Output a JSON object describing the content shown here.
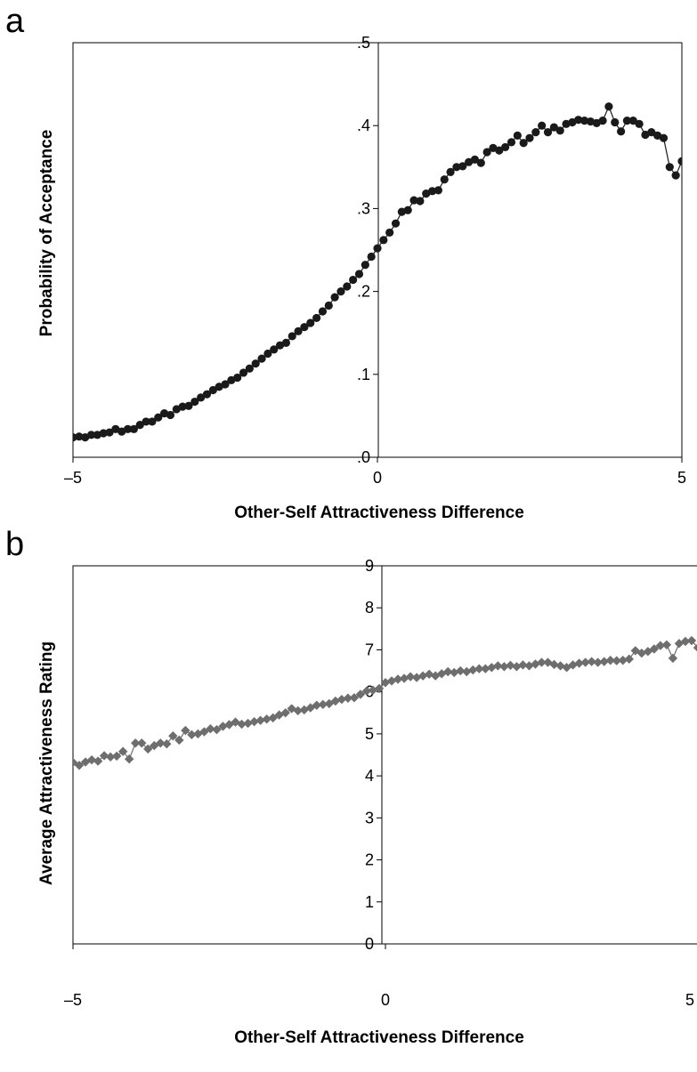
{
  "chart_data": [
    {
      "type": "line",
      "panel_label": "a",
      "xlabel": "Other-Self Attractiveness Difference",
      "ylabel": "Probability of Acceptance",
      "xlim": [
        -5,
        5
      ],
      "ylim": [
        0,
        0.5
      ],
      "x_ticks": [
        "–5",
        "0",
        "5"
      ],
      "y_ticks": [
        ".0",
        ".1",
        ".2",
        ".3",
        ".4",
        ".5"
      ],
      "marker": "circle",
      "colors": {
        "series": "#1a1a1a"
      },
      "series": [
        {
          "name": "",
          "x": [
            -5,
            -4.9,
            -4.8,
            -4.7,
            -4.6,
            -4.5,
            -4.4,
            -4.3,
            -4.2,
            -4.1,
            -4,
            -3.9,
            -3.8,
            -3.7,
            -3.6,
            -3.5,
            -3.4,
            -3.3,
            -3.2,
            -3.1,
            -3,
            -2.9,
            -2.8,
            -2.7,
            -2.6,
            -2.5,
            -2.4,
            -2.3,
            -2.2,
            -2.1,
            -2,
            -1.9,
            -1.8,
            -1.7,
            -1.6,
            -1.5,
            -1.4,
            -1.3,
            -1.2,
            -1.1,
            -1,
            -0.9,
            -0.8,
            -0.7,
            -0.6,
            -0.5,
            -0.4,
            -0.3,
            -0.2,
            -0.1,
            0,
            0.1,
            0.2,
            0.3,
            0.4,
            0.5,
            0.6,
            0.7,
            0.8,
            0.9,
            1,
            1.1,
            1.2,
            1.3,
            1.4,
            1.5,
            1.6,
            1.7,
            1.8,
            1.9,
            2,
            2.1,
            2.2,
            2.3,
            2.4,
            2.5,
            2.6,
            2.7,
            2.8,
            2.9,
            3,
            3.1,
            3.2,
            3.3,
            3.4,
            3.5,
            3.6,
            3.7,
            3.8,
            3.9,
            4,
            4.1,
            4.2,
            4.3,
            4.4,
            4.5,
            4.6,
            4.7,
            4.8,
            4.9,
            5
          ],
          "values": [
            0.024,
            0.025,
            0.024,
            0.027,
            0.027,
            0.029,
            0.03,
            0.034,
            0.031,
            0.034,
            0.034,
            0.039,
            0.043,
            0.043,
            0.048,
            0.053,
            0.051,
            0.058,
            0.061,
            0.062,
            0.067,
            0.072,
            0.076,
            0.081,
            0.085,
            0.088,
            0.093,
            0.096,
            0.102,
            0.107,
            0.113,
            0.119,
            0.125,
            0.13,
            0.135,
            0.138,
            0.146,
            0.152,
            0.157,
            0.162,
            0.168,
            0.176,
            0.183,
            0.193,
            0.2,
            0.206,
            0.214,
            0.221,
            0.232,
            0.242,
            0.252,
            0.262,
            0.271,
            0.282,
            0.296,
            0.298,
            0.31,
            0.309,
            0.318,
            0.321,
            0.322,
            0.335,
            0.344,
            0.35,
            0.351,
            0.356,
            0.359,
            0.355,
            0.368,
            0.373,
            0.37,
            0.374,
            0.38,
            0.388,
            0.379,
            0.385,
            0.392,
            0.4,
            0.392,
            0.398,
            0.394,
            0.402,
            0.404,
            0.407,
            0.406,
            0.405,
            0.403,
            0.406,
            0.423,
            0.404,
            0.393,
            0.406,
            0.406,
            0.402,
            0.389,
            0.392,
            0.388,
            0.385,
            0.35,
            0.34,
            0.357
          ]
        }
      ]
    },
    {
      "type": "line",
      "panel_label": "b",
      "xlabel": "Other-Self Attractiveness Difference",
      "ylabel": "Average Attractiveness Rating",
      "xlim": [
        -5,
        5
      ],
      "ylim": [
        0,
        9
      ],
      "x_ticks": [
        "–5",
        "0",
        "5"
      ],
      "y_ticks": [
        "0",
        "1",
        "2",
        "3",
        "4",
        "5",
        "6",
        "7",
        "8",
        "9"
      ],
      "marker": "diamond",
      "colors": {
        "series": "#6e6e6e"
      },
      "series": [
        {
          "name": "",
          "x": [
            -5,
            -4.9,
            -4.8,
            -4.7,
            -4.6,
            -4.5,
            -4.4,
            -4.3,
            -4.2,
            -4.1,
            -4,
            -3.9,
            -3.8,
            -3.7,
            -3.6,
            -3.5,
            -3.4,
            -3.3,
            -3.2,
            -3.1,
            -3,
            -2.9,
            -2.8,
            -2.7,
            -2.6,
            -2.5,
            -2.4,
            -2.3,
            -2.2,
            -2.1,
            -2,
            -1.9,
            -1.8,
            -1.7,
            -1.6,
            -1.5,
            -1.4,
            -1.3,
            -1.2,
            -1.1,
            -1,
            -0.9,
            -0.8,
            -0.7,
            -0.6,
            -0.5,
            -0.4,
            -0.3,
            -0.2,
            -0.1,
            0,
            0.1,
            0.2,
            0.3,
            0.4,
            0.5,
            0.6,
            0.7,
            0.8,
            0.9,
            1,
            1.1,
            1.2,
            1.3,
            1.4,
            1.5,
            1.6,
            1.7,
            1.8,
            1.9,
            2,
            2.1,
            2.2,
            2.3,
            2.4,
            2.5,
            2.6,
            2.7,
            2.8,
            2.9,
            3,
            3.1,
            3.2,
            3.3,
            3.4,
            3.5,
            3.6,
            3.7,
            3.8,
            3.9,
            4,
            4.1,
            4.2,
            4.3,
            4.4,
            4.5,
            4.6,
            4.7,
            4.8,
            4.9,
            5
          ],
          "values": [
            4.32,
            4.25,
            4.33,
            4.38,
            4.35,
            4.48,
            4.45,
            4.47,
            4.58,
            4.4,
            4.78,
            4.78,
            4.64,
            4.72,
            4.78,
            4.76,
            4.95,
            4.85,
            5.08,
            4.98,
            5.0,
            5.05,
            5.12,
            5.1,
            5.18,
            5.22,
            5.28,
            5.23,
            5.25,
            5.29,
            5.32,
            5.35,
            5.38,
            5.45,
            5.5,
            5.6,
            5.55,
            5.57,
            5.62,
            5.68,
            5.7,
            5.72,
            5.78,
            5.82,
            5.85,
            5.86,
            5.94,
            6.02,
            6.04,
            6.08,
            6.22,
            6.26,
            6.3,
            6.32,
            6.36,
            6.34,
            6.38,
            6.42,
            6.38,
            6.43,
            6.48,
            6.46,
            6.5,
            6.48,
            6.52,
            6.55,
            6.55,
            6.58,
            6.62,
            6.6,
            6.63,
            6.6,
            6.64,
            6.62,
            6.66,
            6.7,
            6.7,
            6.65,
            6.62,
            6.58,
            6.64,
            6.68,
            6.7,
            6.72,
            6.7,
            6.72,
            6.75,
            6.74,
            6.75,
            6.78,
            6.98,
            6.92,
            6.96,
            7.02,
            7.1,
            7.12,
            6.8,
            7.15,
            7.2,
            7.22,
            7.05
          ]
        }
      ]
    }
  ]
}
